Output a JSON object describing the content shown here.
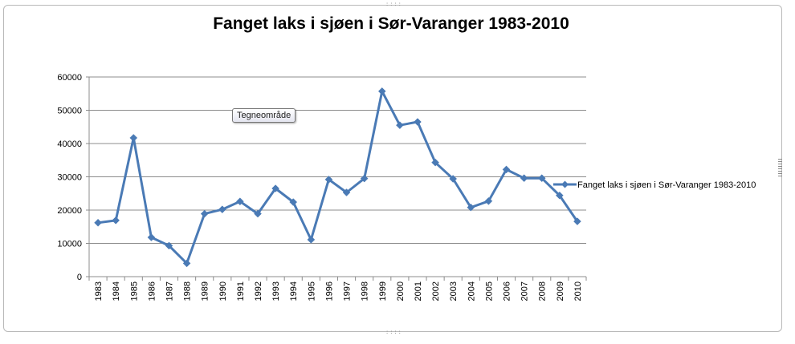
{
  "chart_data": {
    "type": "line",
    "title": "Fanget laks i sjøen i Sør-Varanger 1983-2010",
    "xlabel": "",
    "ylabel": "",
    "ylim": [
      0,
      60000
    ],
    "yticks": [
      0,
      10000,
      20000,
      30000,
      40000,
      50000,
      60000
    ],
    "grid": true,
    "legend_position": "right",
    "categories": [
      "1983",
      "1984",
      "1985",
      "1986",
      "1987",
      "1988",
      "1989",
      "1990",
      "1991",
      "1992",
      "1993",
      "1994",
      "1995",
      "1996",
      "1997",
      "1998",
      "1999",
      "2000",
      "2001",
      "2002",
      "2003",
      "2004",
      "2005",
      "2006",
      "2007",
      "2008",
      "2009",
      "2010"
    ],
    "series": [
      {
        "name": "Fanget laks i sjøen i Sør-Varanger 1983-2010",
        "color": "#4a7ab5",
        "values": [
          16200,
          16900,
          41700,
          11800,
          9300,
          4000,
          18900,
          20200,
          22600,
          18900,
          26500,
          22400,
          11100,
          29200,
          25300,
          29500,
          55700,
          45500,
          46500,
          34300,
          29400,
          20800,
          22700,
          32200,
          29600,
          29600,
          24400,
          16600
        ]
      }
    ]
  },
  "tooltip": {
    "label": "Tegneområde"
  }
}
